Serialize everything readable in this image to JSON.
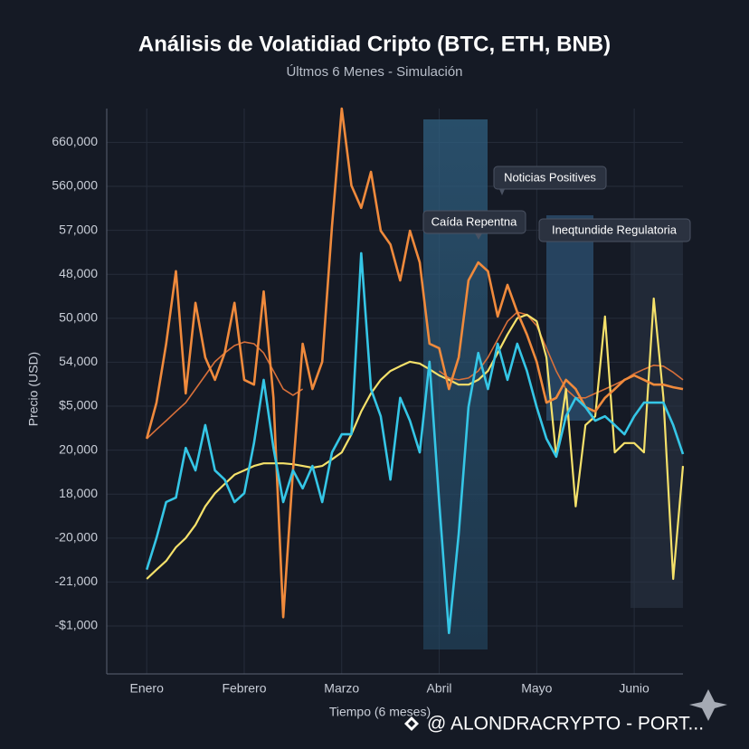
{
  "chart_data": {
    "type": "line",
    "title": "Análisis de Volatidiad Cripto (BTC, ETH, BNB)",
    "subtitle": "Últmos 6 Menes - Simulación",
    "xlabel": "Tiempo (6 meses)",
    "ylabel": "Precio (USD)",
    "x": [
      0,
      0.1,
      0.2,
      0.3,
      0.4,
      0.5,
      0.6,
      0.7,
      0.8,
      0.9,
      1,
      1.1,
      1.2,
      1.3,
      1.4,
      1.5,
      1.6,
      1.7,
      1.8,
      1.9,
      2,
      2.1,
      2.2,
      2.3,
      2.4,
      2.5,
      2.6,
      2.7,
      2.8,
      2.9,
      3,
      3.1,
      3.2,
      3.3,
      3.4,
      3.5,
      3.6,
      3.7,
      3.8,
      3.9,
      4,
      4.1,
      4.2,
      4.3,
      4.4,
      4.5,
      4.6,
      4.7,
      4.8,
      4.9,
      5,
      5.1,
      5.2,
      5.3,
      5.4,
      5.5
    ],
    "xlim": [
      -0.41,
      5.5
    ],
    "xticks": [
      {
        "value": 0,
        "label": "Enero"
      },
      {
        "value": 1,
        "label": "Febrero"
      },
      {
        "value": 2,
        "label": "Marzo"
      },
      {
        "value": 3,
        "label": "Abril"
      },
      {
        "value": 4,
        "label": "Mayo"
      },
      {
        "value": 5,
        "label": "Junio"
      }
    ],
    "ylim": [
      -1.09,
      11.77
    ],
    "yticks": [
      {
        "value": 0,
        "label": "-$1,000"
      },
      {
        "value": 1,
        "label": "-21,000"
      },
      {
        "value": 2,
        "label": "-20,000"
      },
      {
        "value": 3,
        "label": "18,000"
      },
      {
        "value": 4,
        "label": "20,000"
      },
      {
        "value": 5,
        "label": "$5,000"
      },
      {
        "value": 6,
        "label": "54,000"
      },
      {
        "value": 7,
        "label": "50,000"
      },
      {
        "value": 8,
        "label": "48,000"
      },
      {
        "value": 9,
        "label": "57,000"
      },
      {
        "value": 10,
        "label": "560,000"
      },
      {
        "value": 11,
        "label": "660,000"
      }
    ],
    "grid": true,
    "series": [
      {
        "color": "#d8703a",
        "width": 1.6,
        "values": [
          4.26,
          4.47,
          4.67,
          4.88,
          5.08,
          5.39,
          5.7,
          6.01,
          6.21,
          6.38,
          6.46,
          6.42,
          6.21,
          5.8,
          5.39,
          5.25,
          5.39,
          null,
          null,
          null,
          null,
          null,
          null,
          null,
          null,
          null,
          null,
          null,
          null,
          null,
          5.8,
          5.64,
          5.6,
          5.64,
          5.8,
          6.11,
          6.52,
          6.93,
          7.14,
          7.08,
          6.83,
          6.32,
          5.8,
          5.39,
          5.19,
          5.19,
          5.29,
          5.39,
          5.49,
          5.6,
          5.74,
          5.84,
          5.93,
          5.91,
          5.77,
          5.6
        ]
      },
      {
        "color": "#f5e16a",
        "width": 2.2,
        "values": [
          1.07,
          1.28,
          1.48,
          1.79,
          2.0,
          2.3,
          2.72,
          3.02,
          3.23,
          3.44,
          3.54,
          3.64,
          3.7,
          3.7,
          3.7,
          3.68,
          3.64,
          3.6,
          3.64,
          3.79,
          3.95,
          4.36,
          4.88,
          5.29,
          5.6,
          5.8,
          5.91,
          6.01,
          5.97,
          5.84,
          5.7,
          5.6,
          5.49,
          5.49,
          5.6,
          5.8,
          6.21,
          6.63,
          7.0,
          7.08,
          6.93,
          6.11,
          3.85,
          5.39,
          2.72,
          4.57,
          4.77,
          7.04,
          3.95,
          4.16,
          4.16,
          3.95,
          7.45,
          5.19,
          1.07,
          3.64
        ]
      },
      {
        "color": "#f08a3c",
        "width": 2.6,
        "values": [
          4.26,
          5.08,
          6.42,
          8.07,
          5.29,
          7.35,
          6.11,
          5.6,
          6.21,
          7.35,
          5.6,
          5.49,
          7.61,
          5.19,
          0.2,
          3.54,
          6.42,
          5.39,
          6.01,
          9.09,
          11.77,
          10.02,
          9.51,
          10.33,
          8.99,
          8.68,
          7.86,
          8.99,
          8.27,
          6.42,
          6.32,
          5.39,
          6.11,
          7.86,
          8.27,
          8.07,
          7.04,
          7.76,
          7.14,
          6.63,
          6.01,
          5.08,
          5.19,
          5.6,
          5.39,
          4.98,
          4.88,
          5.19,
          5.39,
          5.6,
          5.7,
          5.6,
          5.49,
          5.49,
          5.43,
          5.39
        ]
      },
      {
        "color": "#35c6e6",
        "width": 2.6,
        "values": [
          1.28,
          2.0,
          2.82,
          2.92,
          4.05,
          3.54,
          4.57,
          3.54,
          3.33,
          2.82,
          3.02,
          4.16,
          5.6,
          4.05,
          2.82,
          3.54,
          3.13,
          3.64,
          2.82,
          3.95,
          4.36,
          4.36,
          8.48,
          5.39,
          4.77,
          3.33,
          5.19,
          4.67,
          3.95,
          6.01,
          2.82,
          -0.16,
          2.1,
          4.98,
          6.21,
          5.39,
          6.42,
          5.6,
          6.42,
          5.8,
          4.98,
          4.26,
          3.85,
          4.77,
          5.19,
          4.98,
          4.67,
          4.77,
          4.57,
          4.36,
          4.77,
          5.08,
          5.08,
          5.08,
          4.57,
          3.91
        ]
      }
    ],
    "annotations": [
      "Noticias Positives",
      "Caída Repentna",
      "Ineqtundide Regulatoria"
    ],
    "watermark": "@ ALONDRACRYPTO - PORT..."
  }
}
